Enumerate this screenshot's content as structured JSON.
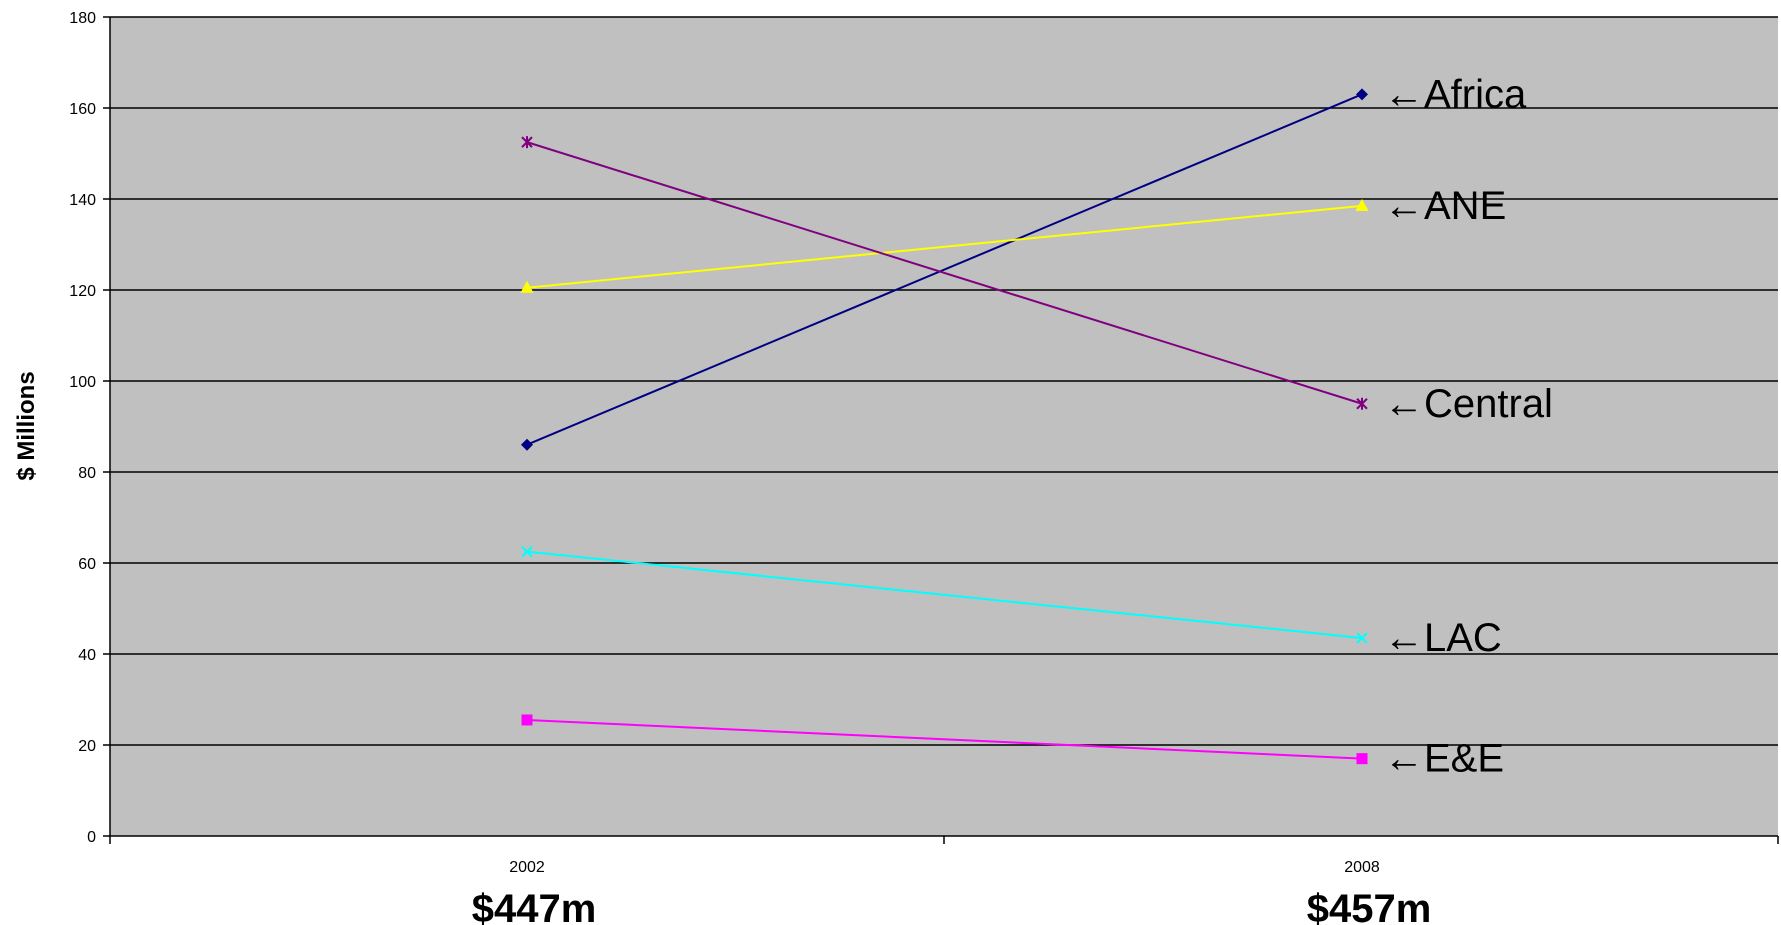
{
  "chart_data": {
    "type": "line",
    "ylabel": "$ Millions",
    "ylim": [
      0,
      180
    ],
    "yticks": [
      0,
      20,
      40,
      60,
      80,
      100,
      120,
      140,
      160,
      180
    ],
    "grid": true,
    "background": "#c0c0c0",
    "categories": [
      "2002",
      "2008"
    ],
    "totals": [
      "$447m",
      "$457m"
    ],
    "series": [
      {
        "name": "Africa",
        "label": "←Africa",
        "values": [
          86,
          163
        ],
        "color": "#000080",
        "marker": "diamond"
      },
      {
        "name": "ANE",
        "label": "←ANE",
        "values": [
          120.5,
          138.5
        ],
        "color": "#ffff00",
        "marker": "triangle"
      },
      {
        "name": "Central",
        "label": "←Central",
        "values": [
          152.5,
          95
        ],
        "color": "#800080",
        "marker": "star"
      },
      {
        "name": "LAC",
        "label": "←LAC",
        "values": [
          62.5,
          43.5
        ],
        "color": "#00ffff",
        "marker": "x"
      },
      {
        "name": "E&E",
        "label": "←E&E",
        "values": [
          25.5,
          17
        ],
        "color": "#ff00ff",
        "marker": "square"
      }
    ]
  }
}
